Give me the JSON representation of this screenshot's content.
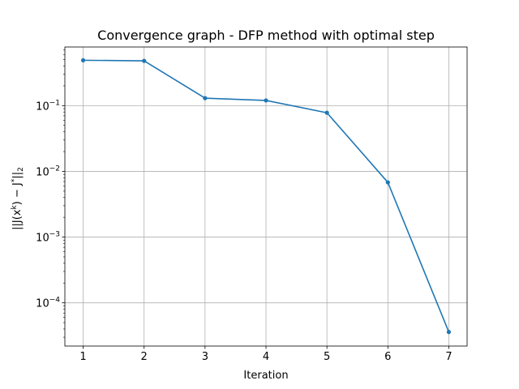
{
  "chart_data": {
    "type": "line",
    "title": "Convergence graph - DFP method with optimal step",
    "xlabel": "Iteration",
    "ylabel": {
      "main": "||J(x",
      "sup_k": "k",
      "mid": ") − J",
      "sup_star": "*",
      "end": "||",
      "sub": "2"
    },
    "x": [
      1,
      2,
      3,
      4,
      5,
      6,
      7
    ],
    "series": [
      {
        "values": [
          0.49,
          0.48,
          0.13,
          0.12,
          0.078,
          0.0068,
          3.6e-05
        ],
        "color": "#1f77b4"
      }
    ],
    "x_ticks": [
      {
        "value": 1,
        "label": "1"
      },
      {
        "value": 2,
        "label": "2"
      },
      {
        "value": 3,
        "label": "3"
      },
      {
        "value": 4,
        "label": "4"
      },
      {
        "value": 5,
        "label": "5"
      },
      {
        "value": 6,
        "label": "6"
      },
      {
        "value": 7,
        "label": "7"
      }
    ],
    "y_ticks": [
      {
        "value": 0.1,
        "base": "10",
        "exp": "−1"
      },
      {
        "value": 0.01,
        "base": "10",
        "exp": "−2"
      },
      {
        "value": 0.001,
        "base": "10",
        "exp": "−3"
      },
      {
        "value": 0.0001,
        "base": "10",
        "exp": "−4"
      }
    ],
    "xlim": [
      0.7,
      7.3
    ],
    "ylim": [
      2.2e-05,
      0.78
    ],
    "yscale": "log",
    "grid": true,
    "grid_color": "#b0b0b0",
    "axis_color": "#000000"
  }
}
